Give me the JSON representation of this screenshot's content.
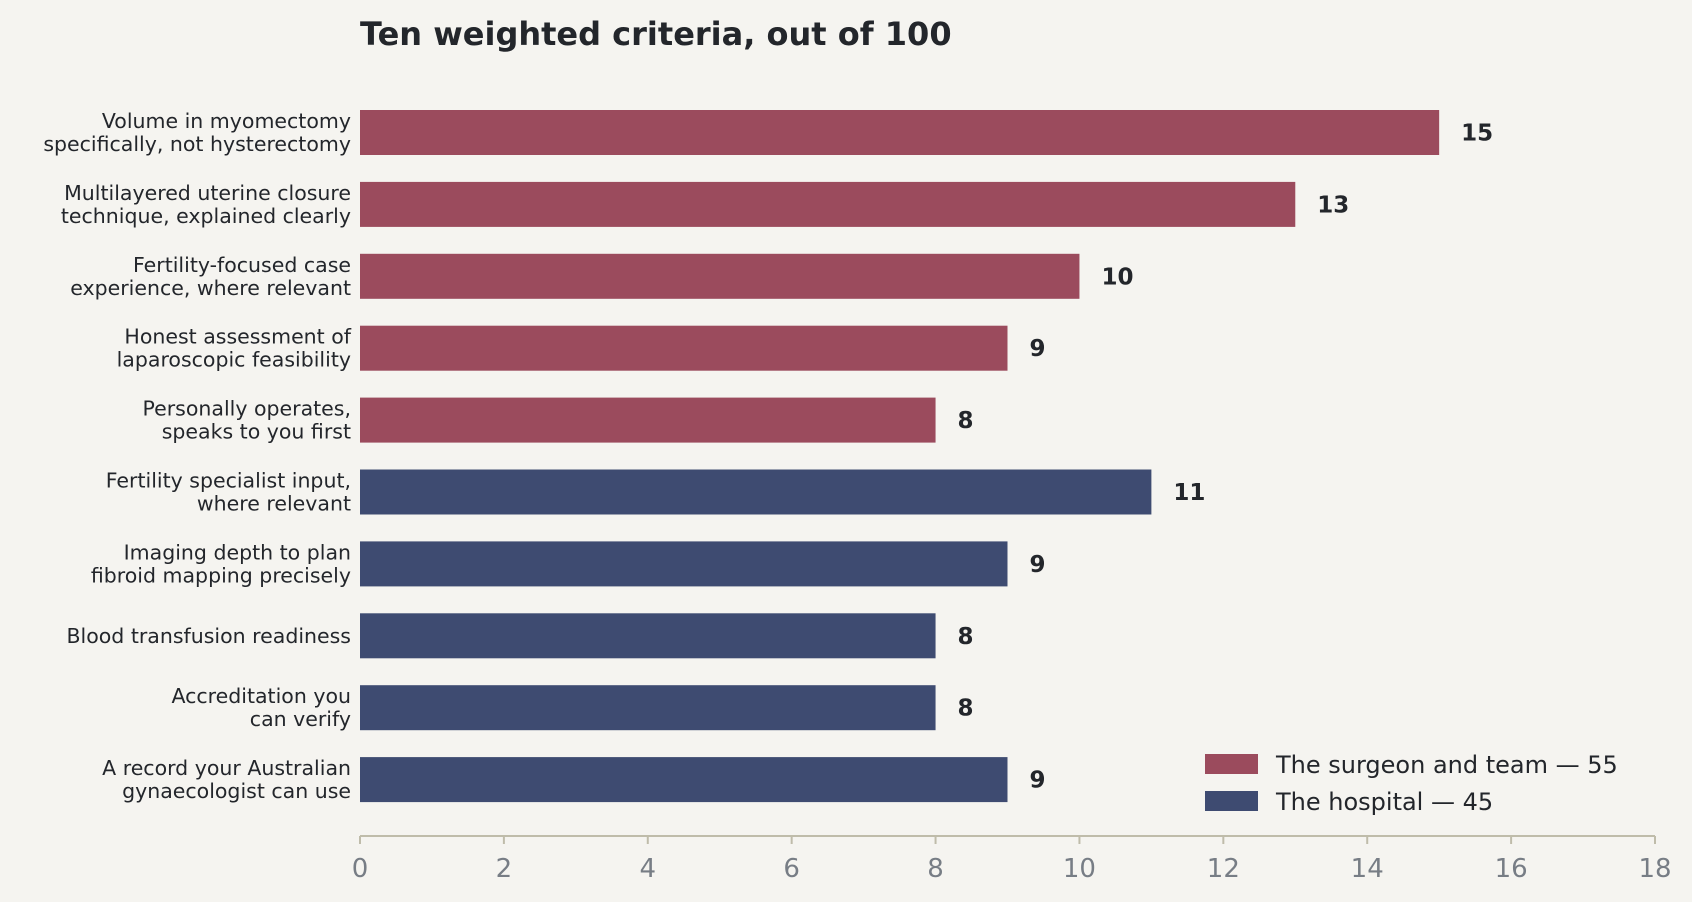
{
  "chart_data": {
    "type": "bar",
    "orientation": "horizontal",
    "title": "Ten weighted criteria, out of 100",
    "xlabel": "",
    "ylabel": "",
    "xlim": [
      0,
      18
    ],
    "xticks": [
      "0",
      "2",
      "4",
      "6",
      "8",
      "10",
      "12",
      "14",
      "16",
      "18"
    ],
    "grid": false,
    "legend_position": "bottom-right",
    "categories": [
      [
        "Volume in myomectomy",
        "specifically, not hysterectomy"
      ],
      [
        "Multilayered uterine closure",
        "technique, explained clearly"
      ],
      [
        "Fertility-focused case",
        "experience, where relevant"
      ],
      [
        "Honest assessment of",
        "laparoscopic feasibility"
      ],
      [
        "Personally operates,",
        "speaks to you first"
      ],
      [
        "Fertility specialist input,",
        "where relevant"
      ],
      [
        "Imaging depth to plan",
        "fibroid mapping precisely"
      ],
      [
        "Blood transfusion readiness"
      ],
      [
        "Accreditation you",
        "can verify"
      ],
      [
        "A record your Australian",
        "gynaecologist can use"
      ]
    ],
    "values": [
      15,
      13,
      10,
      9,
      8,
      11,
      9,
      8,
      8,
      9
    ],
    "groups": [
      0,
      0,
      0,
      0,
      0,
      1,
      1,
      1,
      1,
      1
    ],
    "series": [
      {
        "name": "The surgeon and team — 55",
        "color": "#9b4b5d"
      },
      {
        "name": "The hospital — 45",
        "color": "#3e4b71"
      }
    ],
    "axis_color": "#bfbcaa"
  }
}
